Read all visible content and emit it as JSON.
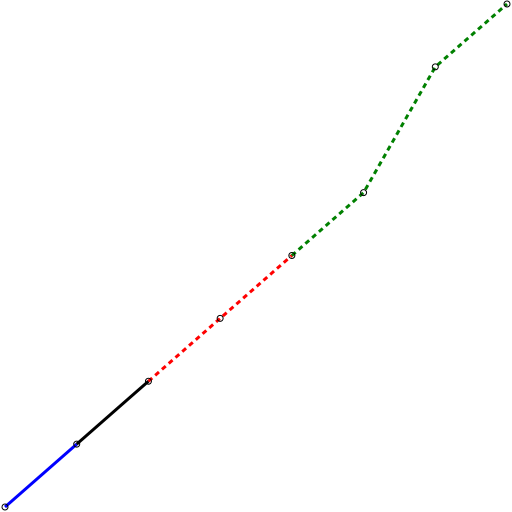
{
  "chart_data": {
    "type": "line",
    "title": "",
    "xlabel": "",
    "ylabel": "",
    "xlim": [
      0,
      8
    ],
    "ylim": [
      0,
      8
    ],
    "grid": false,
    "axes_visible": false,
    "series": [
      {
        "color": "#0000ff",
        "dash": "solid",
        "x": [
          0,
          1
        ],
        "y": [
          0,
          1
        ]
      },
      {
        "color": "#000000",
        "dash": "solid",
        "x": [
          1,
          2
        ],
        "y": [
          1,
          2
        ]
      },
      {
        "color": "#ff0000",
        "dash": "dashed",
        "x": [
          2,
          3,
          4
        ],
        "y": [
          2,
          3,
          4
        ]
      },
      {
        "color": "#008000",
        "dash": "dashed",
        "x": [
          4,
          5,
          6,
          7
        ],
        "y": [
          4,
          5,
          7,
          8
        ]
      }
    ],
    "markers": {
      "shape": "open-circle",
      "color": "#000000",
      "x": [
        0,
        1,
        2,
        3,
        4,
        5,
        6,
        7
      ],
      "y": [
        0,
        1,
        2,
        3,
        4,
        5,
        7,
        8
      ]
    }
  }
}
